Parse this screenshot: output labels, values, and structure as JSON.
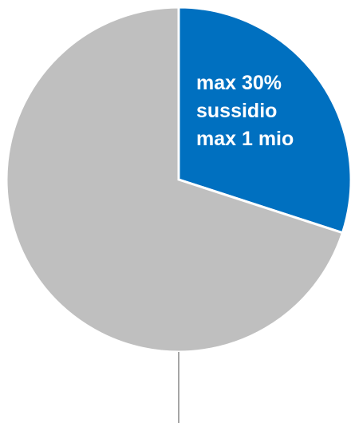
{
  "chart_data": {
    "type": "pie",
    "title": "",
    "start_angle_deg": 0,
    "direction": "clockwise",
    "slices": [
      {
        "value": 30,
        "color": "#0070c0",
        "label_lines": [
          "max 30%",
          "sussidio",
          "max 1 mio"
        ]
      },
      {
        "value": 70,
        "color": "#bfbfbf",
        "label_lines": []
      }
    ],
    "slice_border_color": "#ffffff",
    "leader_line_color": "#a6a6a6"
  }
}
